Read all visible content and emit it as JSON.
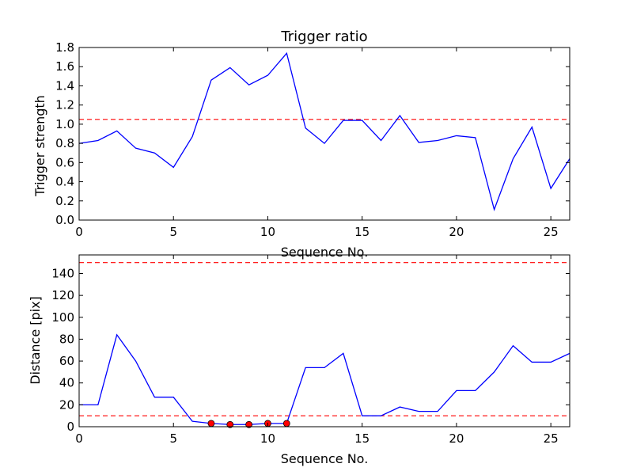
{
  "chart_data": [
    {
      "type": "line",
      "title": "Trigger ratio",
      "xlabel": "Sequence No.",
      "ylabel": "Trigger strength",
      "xlim": [
        0,
        26
      ],
      "ylim": [
        0.0,
        1.8
      ],
      "xticks": [
        0,
        5,
        10,
        15,
        20,
        25
      ],
      "yticks": [
        0.0,
        0.2,
        0.4,
        0.6,
        0.8,
        1.0,
        1.2,
        1.4,
        1.6,
        1.8
      ],
      "ytick_labels": [
        "0.0",
        "0.2",
        "0.4",
        "0.6",
        "0.8",
        "1.0",
        "1.2",
        "1.4",
        "1.6",
        "1.8"
      ],
      "grid": false,
      "series": [
        {
          "color": "#0000ff",
          "x": [
            0,
            1,
            2,
            3,
            4,
            5,
            6,
            7,
            8,
            9,
            10,
            11,
            12,
            13,
            14,
            15,
            16,
            17,
            18,
            19,
            20,
            21,
            22,
            23,
            24,
            25,
            26
          ],
          "values": [
            0.8,
            0.83,
            0.93,
            0.75,
            0.7,
            0.55,
            0.87,
            1.46,
            1.59,
            1.41,
            1.51,
            1.74,
            0.96,
            0.8,
            1.04,
            1.04,
            0.83,
            1.09,
            0.81,
            0.83,
            0.88,
            0.86,
            0.11,
            0.64,
            0.97,
            0.33,
            0.64
          ]
        }
      ],
      "threshold_lines": [
        {
          "y": 1.05,
          "color": "#ff0000",
          "style": "dashed"
        }
      ]
    },
    {
      "type": "line",
      "title": "",
      "xlabel": "Sequence No.",
      "ylabel": "Distance [pix]",
      "xlim": [
        0,
        26
      ],
      "ylim": [
        0,
        157
      ],
      "xticks": [
        0,
        5,
        10,
        15,
        20,
        25
      ],
      "yticks": [
        0,
        20,
        40,
        60,
        80,
        100,
        120,
        140
      ],
      "ytick_labels": [
        "0",
        "20",
        "40",
        "60",
        "80",
        "100",
        "120",
        "140"
      ],
      "grid": false,
      "series": [
        {
          "color": "#0000ff",
          "x": [
            0,
            1,
            2,
            3,
            4,
            5,
            6,
            7,
            8,
            9,
            10,
            11,
            12,
            13,
            14,
            15,
            16,
            17,
            18,
            19,
            20,
            21,
            22,
            23,
            24,
            25,
            26
          ],
          "values": [
            20,
            20,
            84,
            60,
            27,
            27,
            5,
            3,
            2,
            2,
            3,
            3,
            54,
            54,
            67,
            10,
            10,
            18,
            14,
            14,
            33,
            33,
            50,
            74,
            59,
            59,
            67
          ]
        }
      ],
      "markers": {
        "color": "#ff0000",
        "x": [
          7,
          8,
          9,
          10,
          11
        ],
        "values": [
          3,
          2,
          2,
          3,
          3
        ]
      },
      "threshold_lines": [
        {
          "y": 150,
          "color": "#ff0000",
          "style": "dashed"
        },
        {
          "y": 10,
          "color": "#ff0000",
          "style": "dashed"
        }
      ]
    }
  ]
}
